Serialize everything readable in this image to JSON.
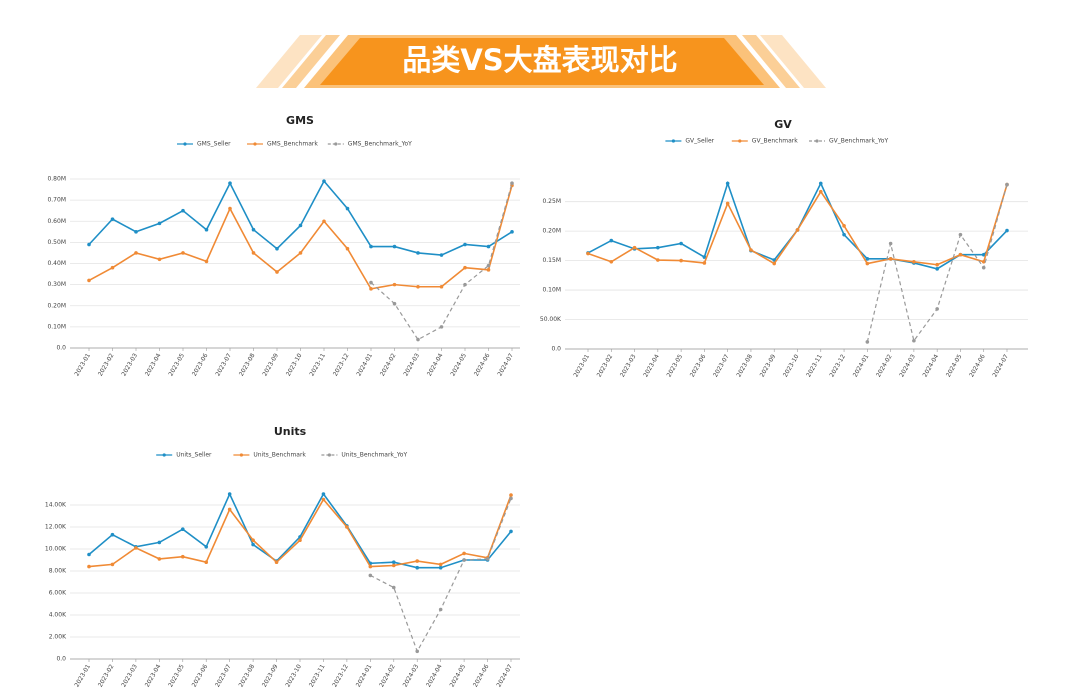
{
  "page_title": "品类VS大盘表现对比",
  "chart_data": [
    {
      "type": "line",
      "title": "GMS",
      "categories": [
        "2023-01",
        "2023-02",
        "2023-03",
        "2023-04",
        "2023-05",
        "2023-06",
        "2023-07",
        "2023-08",
        "2023-09",
        "2023-10",
        "2023-11",
        "2023-12",
        "2024-01",
        "2024-02",
        "2024-03",
        "2024-04",
        "2024-05",
        "2024-06",
        "2024-07"
      ],
      "series": [
        {
          "name": "GMS_Seller",
          "color": "#1f8fc6",
          "line_style": "solid",
          "values": [
            0.49,
            0.61,
            0.55,
            0.59,
            0.65,
            0.56,
            0.78,
            0.56,
            0.47,
            0.58,
            0.79,
            0.66,
            0.48,
            0.48,
            0.45,
            0.44,
            0.49,
            0.48,
            0.55
          ]
        },
        {
          "name": "GMS_Benchmark",
          "color": "#f08a35",
          "line_style": "solid",
          "values": [
            0.32,
            0.38,
            0.45,
            0.42,
            0.45,
            0.41,
            0.66,
            0.45,
            0.36,
            0.45,
            0.6,
            0.47,
            0.28,
            0.3,
            0.29,
            0.29,
            0.38,
            0.37,
            0.77
          ]
        },
        {
          "name": "GMS_Benchmark_YoY",
          "color": "#999999",
          "line_style": "dashed",
          "values": [
            null,
            null,
            null,
            null,
            null,
            null,
            null,
            null,
            null,
            null,
            null,
            null,
            0.31,
            0.21,
            0.04,
            0.1,
            0.3,
            0.39,
            0.78
          ]
        }
      ],
      "ylim": [
        0,
        0.8
      ],
      "yticks": [
        {
          "value": 0,
          "label": "0.0"
        },
        {
          "value": 0.1,
          "label": "0.10M"
        },
        {
          "value": 0.2,
          "label": "0.20M"
        },
        {
          "value": 0.3,
          "label": "0.30M"
        },
        {
          "value": 0.4,
          "label": "0.40M"
        },
        {
          "value": 0.5,
          "label": "0.50M"
        },
        {
          "value": 0.6,
          "label": "0.60M"
        },
        {
          "value": 0.7,
          "label": "0.70M"
        },
        {
          "value": 0.8,
          "label": "0.80M"
        }
      ],
      "grid": true
    },
    {
      "type": "line",
      "title": "GV",
      "categories": [
        "2023-01",
        "2023-02",
        "2023-03",
        "2023-04",
        "2023-05",
        "2023-06",
        "2023-07",
        "2023-08",
        "2023-09",
        "2023-10",
        "2023-11",
        "2023-12",
        "2024-01",
        "2024-02",
        "2024-03",
        "2024-04",
        "2024-05",
        "2024-06",
        "2024-07"
      ],
      "series": [
        {
          "name": "GV_Seller",
          "color": "#1f8fc6",
          "line_style": "solid",
          "values": [
            163000,
            184000,
            170000,
            172000,
            179000,
            156000,
            281000,
            167000,
            151000,
            202000,
            281000,
            194000,
            153000,
            153000,
            146000,
            136000,
            160000,
            160000,
            201000
          ]
        },
        {
          "name": "GV_Benchmark",
          "color": "#f08a35",
          "line_style": "solid",
          "values": [
            162000,
            148000,
            172000,
            151000,
            150000,
            146000,
            247000,
            168000,
            145000,
            202000,
            267000,
            209000,
            145000,
            153000,
            148000,
            143000,
            160000,
            148000,
            279000
          ]
        },
        {
          "name": "GV_Benchmark_YoY",
          "color": "#999999",
          "line_style": "dashed",
          "values": [
            null,
            null,
            null,
            null,
            null,
            null,
            null,
            null,
            null,
            null,
            null,
            null,
            12000,
            179000,
            14000,
            68000,
            194000,
            138000,
            279000
          ]
        }
      ],
      "ylim": [
        0,
        280000
      ],
      "yticks": [
        {
          "value": 0,
          "label": "0.0"
        },
        {
          "value": 50000,
          "label": "50.00K"
        },
        {
          "value": 100000,
          "label": "0.10M"
        },
        {
          "value": 150000,
          "label": "0.15M"
        },
        {
          "value": 200000,
          "label": "0.20M"
        },
        {
          "value": 250000,
          "label": "0.25M"
        }
      ],
      "grid": true
    },
    {
      "type": "line",
      "title": "Units",
      "categories": [
        "2023-01",
        "2023-02",
        "2023-03",
        "2023-04",
        "2023-05",
        "2023-06",
        "2023-07",
        "2023-08",
        "2023-09",
        "2023-10",
        "2023-11",
        "2023-12",
        "2024-01",
        "2024-02",
        "2024-03",
        "2024-04",
        "2024-05",
        "2024-06",
        "2024-07"
      ],
      "series": [
        {
          "name": "Units_Seller",
          "color": "#1f8fc6",
          "line_style": "solid",
          "values": [
            9500,
            11300,
            10200,
            10600,
            11800,
            10200,
            15000,
            10400,
            8900,
            11100,
            15000,
            12100,
            8700,
            8800,
            8300,
            8300,
            9000,
            9000,
            11600
          ]
        },
        {
          "name": "Units_Benchmark",
          "color": "#f08a35",
          "line_style": "solid",
          "values": [
            8400,
            8600,
            10100,
            9100,
            9300,
            8800,
            13600,
            10800,
            8800,
            10800,
            14500,
            12000,
            8400,
            8500,
            8900,
            8600,
            9600,
            9200,
            14900
          ]
        },
        {
          "name": "Units_Benchmark_YoY",
          "color": "#999999",
          "line_style": "dashed",
          "values": [
            null,
            null,
            null,
            null,
            null,
            null,
            null,
            null,
            null,
            null,
            null,
            null,
            7600,
            6500,
            700,
            4500,
            9000,
            9100,
            14600
          ]
        }
      ],
      "ylim": [
        0,
        15000
      ],
      "yticks": [
        {
          "value": 0,
          "label": "0.0"
        },
        {
          "value": 2000,
          "label": "2.00K"
        },
        {
          "value": 4000,
          "label": "4.00K"
        },
        {
          "value": 6000,
          "label": "6.00K"
        },
        {
          "value": 8000,
          "label": "8.00K"
        },
        {
          "value": 10000,
          "label": "10.00K"
        },
        {
          "value": 12000,
          "label": "12.00K"
        },
        {
          "value": 14000,
          "label": "14.00K"
        }
      ],
      "grid": true
    }
  ]
}
